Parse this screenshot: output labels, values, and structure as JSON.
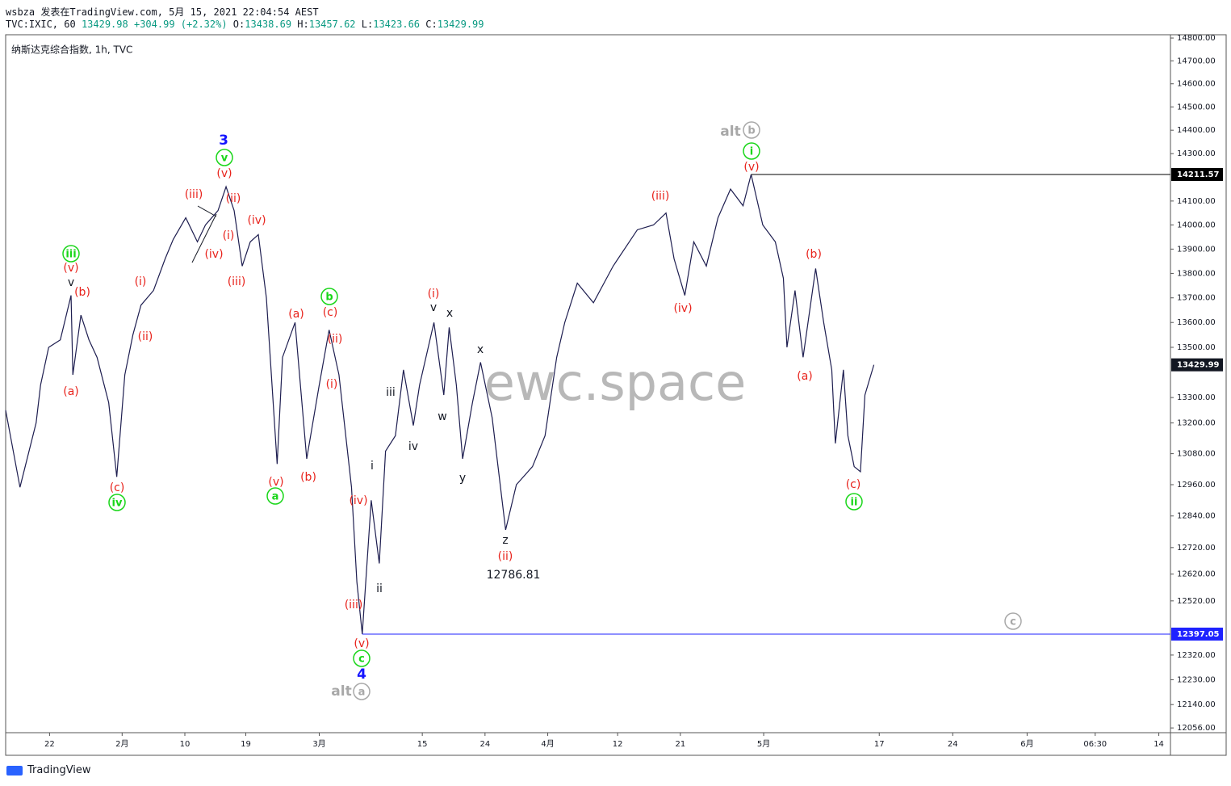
{
  "header": {
    "publisher": "wsbza 发表在TradingView.com, 5月 15, 2021 22:04:54 AEST",
    "symbol": "TVC:IXIC, 60",
    "last": 13429.98,
    "change": "+304.99 (+2.32%)",
    "o_label": "O:",
    "open": 13438.69,
    "h_label": "H:",
    "high": 13457.62,
    "l_label": "L:",
    "low": 13423.66,
    "c_label": "C:",
    "close": 13429.99
  },
  "footer": "TradingView",
  "chart_data": {
    "type": "line",
    "title": "纳斯达克综合指数, 1h, TVC",
    "watermark": "ewc.space",
    "log_scale": true,
    "color": "#1e1e50",
    "x": [
      0,
      1.6,
      3.4,
      3.9,
      4.8,
      6.1,
      7.3,
      7.5,
      8.4,
      9.3,
      10.2,
      11.5,
      12.4,
      13.3,
      14.2,
      15.1,
      16.5,
      17.8,
      18.7,
      20.1,
      21.4,
      22.3,
      23.7,
      24.6,
      25.5,
      26.4,
      27.3,
      28.2,
      29.1,
      30.3,
      30.9,
      32.3,
      33.6,
      35.0,
      36.1,
      37.2,
      38.6,
      39.2,
      39.8,
      40.8,
      41.7,
      42.4,
      43.5,
      44.4,
      45.5,
      46.2,
      47.8,
      48.9,
      49.5,
      50.3,
      51.0,
      52.1,
      53.0,
      54.3,
      55.8,
      57.0,
      58.8,
      60.2,
      61.5,
      62.4,
      63.8,
      65.6,
      67.8,
      70.5,
      72.3,
      73.7,
      74.6,
      75.8,
      76.8,
      78.2,
      79.5,
      80.9,
      82.3,
      83.2,
      84.5,
      85.9,
      86.8,
      87.2,
      88.1,
      89.0,
      90.4,
      91.3,
      92.2,
      92.6,
      93.5,
      94.0,
      94.7,
      95.4,
      95.9,
      96.9
    ],
    "values": [
      13250,
      12950,
      13200,
      13350,
      13500,
      13530,
      13710,
      13390,
      13630,
      13530,
      13460,
      13280,
      12990,
      13390,
      13550,
      13670,
      13730,
      13860,
      13940,
      14030,
      13930,
      14000,
      14060,
      14160,
      14060,
      13830,
      13930,
      13960,
      13700,
      13040,
      13460,
      13600,
      13060,
      13350,
      13570,
      13390,
      12950,
      12590,
      12397,
      12900,
      12660,
      13090,
      13150,
      13410,
      13190,
      13350,
      13600,
      13310,
      13580,
      13350,
      13060,
      13280,
      13440,
      13220,
      12787,
      12960,
      13030,
      13150,
      13460,
      13600,
      13760,
      13680,
      13830,
      13980,
      14000,
      14050,
      13860,
      13710,
      13930,
      13830,
      14030,
      14150,
      14080,
      14212,
      14000,
      13930,
      13780,
      13500,
      13730,
      13460,
      13820,
      13600,
      13410,
      13120,
      13410,
      13150,
      13030,
      13010,
      13310,
      13430
    ],
    "xlim": [
      0,
      130
    ],
    "xticks": [
      {
        "value": 4.9,
        "label": "22"
      },
      {
        "value": 13.0,
        "label": "2月"
      },
      {
        "value": 20.0,
        "label": "10"
      },
      {
        "value": 26.8,
        "label": "19"
      },
      {
        "value": 35.0,
        "label": "3月"
      },
      {
        "value": 46.5,
        "label": "15"
      },
      {
        "value": 53.5,
        "label": "24"
      },
      {
        "value": 60.5,
        "label": "4月"
      },
      {
        "value": 68.3,
        "label": "12"
      },
      {
        "value": 75.3,
        "label": "21"
      },
      {
        "value": 84.6,
        "label": "5月"
      },
      {
        "value": 97.5,
        "label": "17"
      },
      {
        "value": 105.7,
        "label": "24"
      },
      {
        "value": 114.0,
        "label": "6月"
      },
      {
        "value": 121.6,
        "label": "06:30"
      },
      {
        "value": 128.7,
        "label": "14"
      }
    ],
    "ylim": [
      12039,
      14818
    ],
    "yticks": [
      {
        "value": 14800,
        "label": "14800.00"
      },
      {
        "value": 14700,
        "label": "14700.00"
      },
      {
        "value": 14600,
        "label": "14600.00"
      },
      {
        "value": 14500,
        "label": "14500.00"
      },
      {
        "value": 14400,
        "label": "14400.00"
      },
      {
        "value": 14300,
        "label": "14300.00"
      },
      {
        "value": 14100,
        "label": "14100.00"
      },
      {
        "value": 14000,
        "label": "14000.00"
      },
      {
        "value": 13900,
        "label": "13900.00"
      },
      {
        "value": 13800,
        "label": "13800.00"
      },
      {
        "value": 13700,
        "label": "13700.00"
      },
      {
        "value": 13600,
        "label": "13600.00"
      },
      {
        "value": 13500,
        "label": "13500.00"
      },
      {
        "value": 13300,
        "label": "13300.00"
      },
      {
        "value": 13200,
        "label": "13200.00"
      },
      {
        "value": 13080,
        "label": "13080.00"
      },
      {
        "value": 12960,
        "label": "12960.00"
      },
      {
        "value": 12840,
        "label": "12840.00"
      },
      {
        "value": 12720,
        "label": "12720.00"
      },
      {
        "value": 12620,
        "label": "12620.00"
      },
      {
        "value": 12520,
        "label": "12520.00"
      },
      {
        "value": 12320,
        "label": "12320.00"
      },
      {
        "value": 12230,
        "label": "12230.00"
      },
      {
        "value": 12140,
        "label": "12140.00"
      },
      {
        "value": 12056,
        "label": "12056.00"
      }
    ],
    "price_lines": [
      {
        "value": 14211.57,
        "from_x": 83.2,
        "color": "#000000"
      },
      {
        "value": 12397.05,
        "from_x": 39.8,
        "color": "#1e22ff"
      }
    ],
    "last_price": {
      "value": 13429.99,
      "color": "#131722"
    },
    "annotations": [
      "3",
      "v",
      "(v)",
      "(iii)",
      "(ii)",
      "(i)",
      "(iv)",
      "(iv)",
      "(iii)",
      "iii",
      "(v)",
      "v",
      "(b)",
      "(a)",
      "(c)",
      "iv",
      "(i)",
      "(ii)",
      "(a)",
      "(v)",
      "a",
      "(b)",
      "b",
      "(c)",
      "(ii)",
      "(i)",
      "(iv)",
      "(iii)",
      "(v)",
      "c",
      "4",
      "alt",
      "a",
      "i",
      "ii",
      "iii",
      "iv",
      "(i)",
      "v",
      "x",
      "w",
      "x",
      "y",
      "z",
      "(ii)",
      12786.81,
      "(iii)",
      "(iv)",
      "alt",
      "b",
      "i",
      "(v)",
      "(b)",
      "(a)",
      "(c)",
      "ii",
      "c"
    ]
  }
}
